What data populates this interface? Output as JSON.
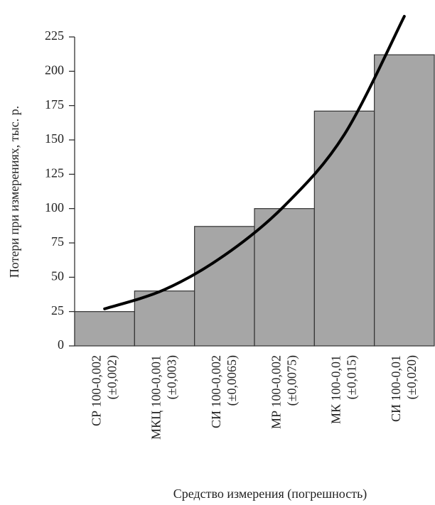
{
  "chart_data": {
    "type": "bar",
    "categories": [
      [
        "СР 100-0,002",
        "(±0,002)"
      ],
      [
        "МКЦ 100-0,001",
        "(±0,003)"
      ],
      [
        "СИ 100-0,002",
        "(±0,0065)"
      ],
      [
        "МР 100-0,002",
        "(±0,0075)"
      ],
      [
        "МК 100-0,01",
        "(±0,015)"
      ],
      [
        "СИ 100-0,01",
        "(±0,020)"
      ]
    ],
    "values": [
      25,
      40,
      87,
      100,
      171,
      212
    ],
    "color": "#a6a6a6",
    "trend": {
      "type": "line",
      "color": "#000000",
      "values": [
        27,
        41,
        66,
        102,
        154,
        240
      ]
    },
    "ylim": [
      0,
      225
    ],
    "yticks": [
      0,
      25,
      50,
      75,
      100,
      125,
      150,
      175,
      200,
      225
    ],
    "y_label": "Потери при измерениях, тыс. р.",
    "x_label": "Средство измерения (погрешность)",
    "grid": false
  }
}
